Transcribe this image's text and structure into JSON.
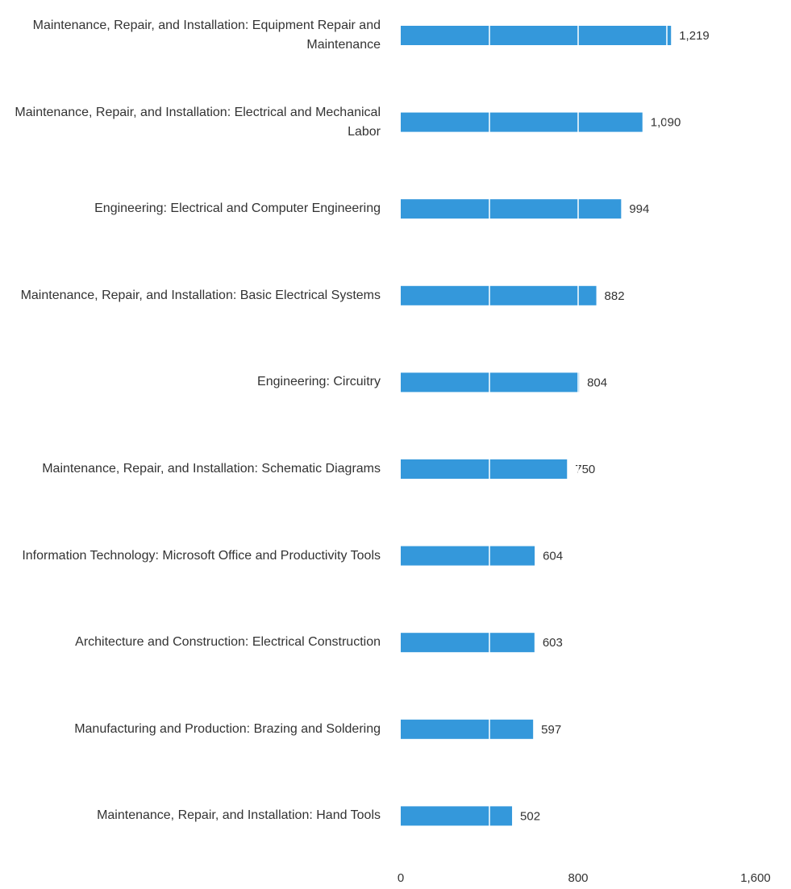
{
  "chart_data": {
    "type": "bar",
    "orientation": "horizontal",
    "categories": [
      "Maintenance, Repair, and Installation: Equipment Repair and Maintenance",
      "Maintenance, Repair, and Installation: Electrical and Mechanical Labor",
      "Engineering: Electrical and Computer Engineering",
      "Maintenance, Repair, and Installation: Basic Electrical Systems",
      "Engineering: Circuitry",
      "Maintenance, Repair, and Installation: Schematic Diagrams",
      "Information Technology: Microsoft Office and Productivity Tools",
      "Architecture and Construction: Electrical Construction",
      "Manufacturing and Production: Brazing and Soldering",
      "Maintenance, Repair, and Installation: Hand Tools"
    ],
    "values": [
      1219,
      1090,
      994,
      882,
      804,
      750,
      604,
      603,
      597,
      502
    ],
    "value_labels": [
      "1,219",
      "1,090",
      "994",
      "882",
      "804",
      "750",
      "604",
      "603",
      "597",
      "502"
    ],
    "color": "#3498db",
    "xlim": [
      0,
      1600
    ],
    "xticks": [
      0,
      800,
      {
        "value": 1600,
        "label": "1,600"
      }
    ],
    "minor_xticks": [
      400,
      1200
    ],
    "grid": true
  }
}
